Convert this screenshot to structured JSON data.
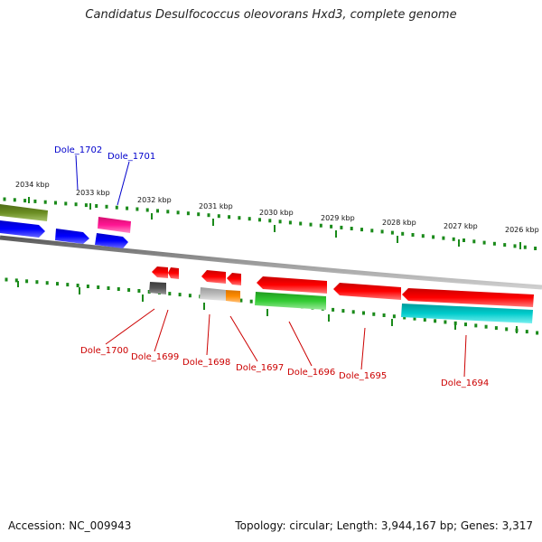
{
  "title": "Candidatus Desulfococcus oleovorans Hxd3, complete genome",
  "footer": {
    "accession": "Accession: NC_009943",
    "topology": "Topology: circular; Length: 3,944,167 bp; Genes: 3,317"
  },
  "scale_labels": [
    "2034 kbp",
    "2033 kbp",
    "2032 kbp",
    "2031 kbp",
    "2030 kbp",
    "2029 kbp",
    "2028 kbp",
    "2027 kbp",
    "2026 kbp"
  ],
  "genes_top": [
    "Dole_1702",
    "Dole_1701"
  ],
  "genes_bottom": [
    "Dole_1700",
    "Dole_1699",
    "Dole_1698",
    "Dole_1697",
    "Dole_1696",
    "Dole_1695",
    "Dole_1694"
  ],
  "colors": {
    "olive": "#6b8e23",
    "blue": "#0000ff",
    "magenta": "#ff1493",
    "red": "#ff0000",
    "dark_gray": "#555555",
    "light_gray": "#bbbbbb",
    "orange": "#ff8c00",
    "green": "#33cc33",
    "cyan": "#00cccc",
    "tick_green": "#1a8a1a",
    "backbone": "#888888",
    "top_label": "#0000cc",
    "bottom_label": "#cc0000"
  }
}
